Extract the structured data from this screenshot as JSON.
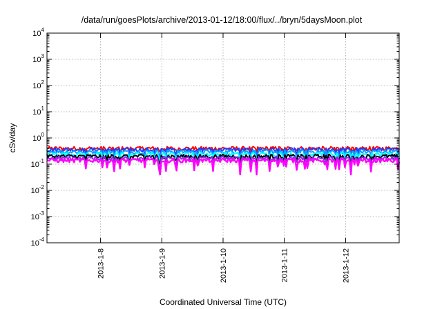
{
  "chart_data": {
    "type": "line",
    "title": "/data/run/goesPlots/archive/2013-01-12/18:00/flux/../bryn/5daysMoon.plot",
    "xlabel": "Coordinated Universal Time (UTC)",
    "ylabel": "cSv/day",
    "y_scale": "log",
    "ylim": [
      0.0001,
      10000
    ],
    "y_ticks": [
      {
        "base": "10",
        "exp": "4"
      },
      {
        "base": "10",
        "exp": "3"
      },
      {
        "base": "10",
        "exp": "2"
      },
      {
        "base": "10",
        "exp": "1"
      },
      {
        "base": "10",
        "exp": "0"
      },
      {
        "base": "10",
        "exp": "-1"
      },
      {
        "base": "10",
        "exp": "-2"
      },
      {
        "base": "10",
        "exp": "-3"
      },
      {
        "base": "10",
        "exp": "-4"
      }
    ],
    "xlim": [
      "2013-01-07 03:00",
      "2013-01-12 21:00"
    ],
    "x_ticks": [
      "2013-1-8",
      "2013-1-9",
      "2013-1-10",
      "2013-1-11",
      "2013-1-12"
    ],
    "x_tick_dates": [
      "2013-01-08",
      "2013-01-09",
      "2013-01-10",
      "2013-01-11",
      "2013-01-12"
    ],
    "grid": true,
    "series": [
      {
        "color": "#ff0000",
        "approx_level": 0.4,
        "min_dip": 0.3
      },
      {
        "color": "#1f3fff",
        "approx_level": 0.36,
        "min_dip": 0.2
      },
      {
        "color": "#0aa0ff",
        "approx_level": 0.3,
        "min_dip": 0.15
      },
      {
        "color": "#00ffff",
        "approx_level": 0.24,
        "min_dip": 0.12
      },
      {
        "color": "#000000",
        "approx_level": 0.2,
        "min_dip": 0.1
      },
      {
        "color": "#8a2be2",
        "approx_level": 0.17,
        "min_dip": 0.07
      },
      {
        "color": "#ff00ff",
        "approx_level": 0.14,
        "min_dip": 0.04
      }
    ]
  }
}
